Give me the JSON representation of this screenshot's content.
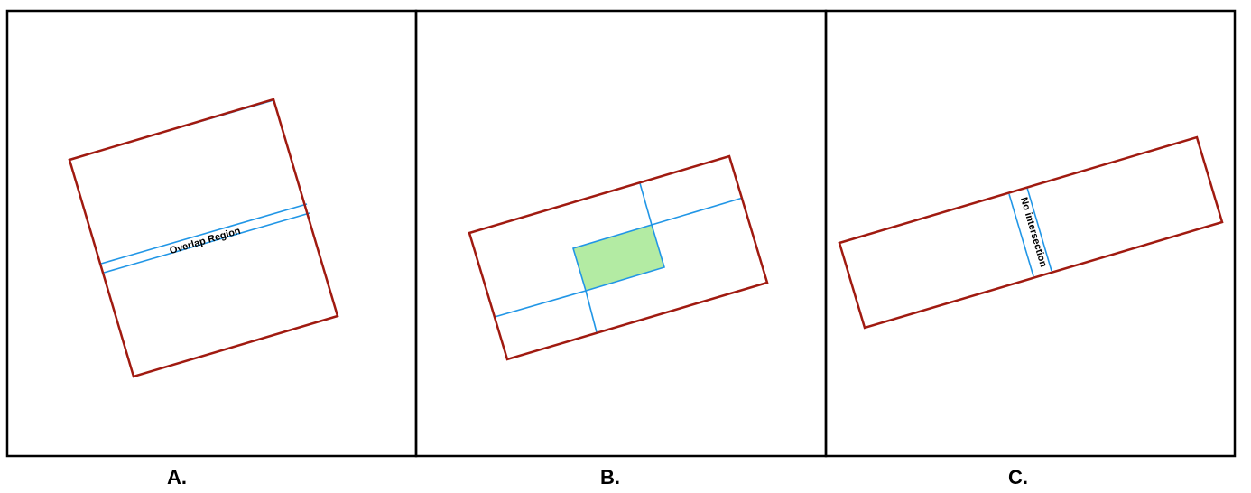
{
  "panels": [
    {
      "label": "A.",
      "annotation": "Overlap Region"
    },
    {
      "label": "B.",
      "overlap_color": "#b3eba3"
    },
    {
      "label": "C.",
      "annotation": "No intersection"
    }
  ],
  "colors": {
    "rectangle_stroke": "#a01a10",
    "line_stroke": "#2196e6",
    "frame_stroke": "#000000"
  }
}
